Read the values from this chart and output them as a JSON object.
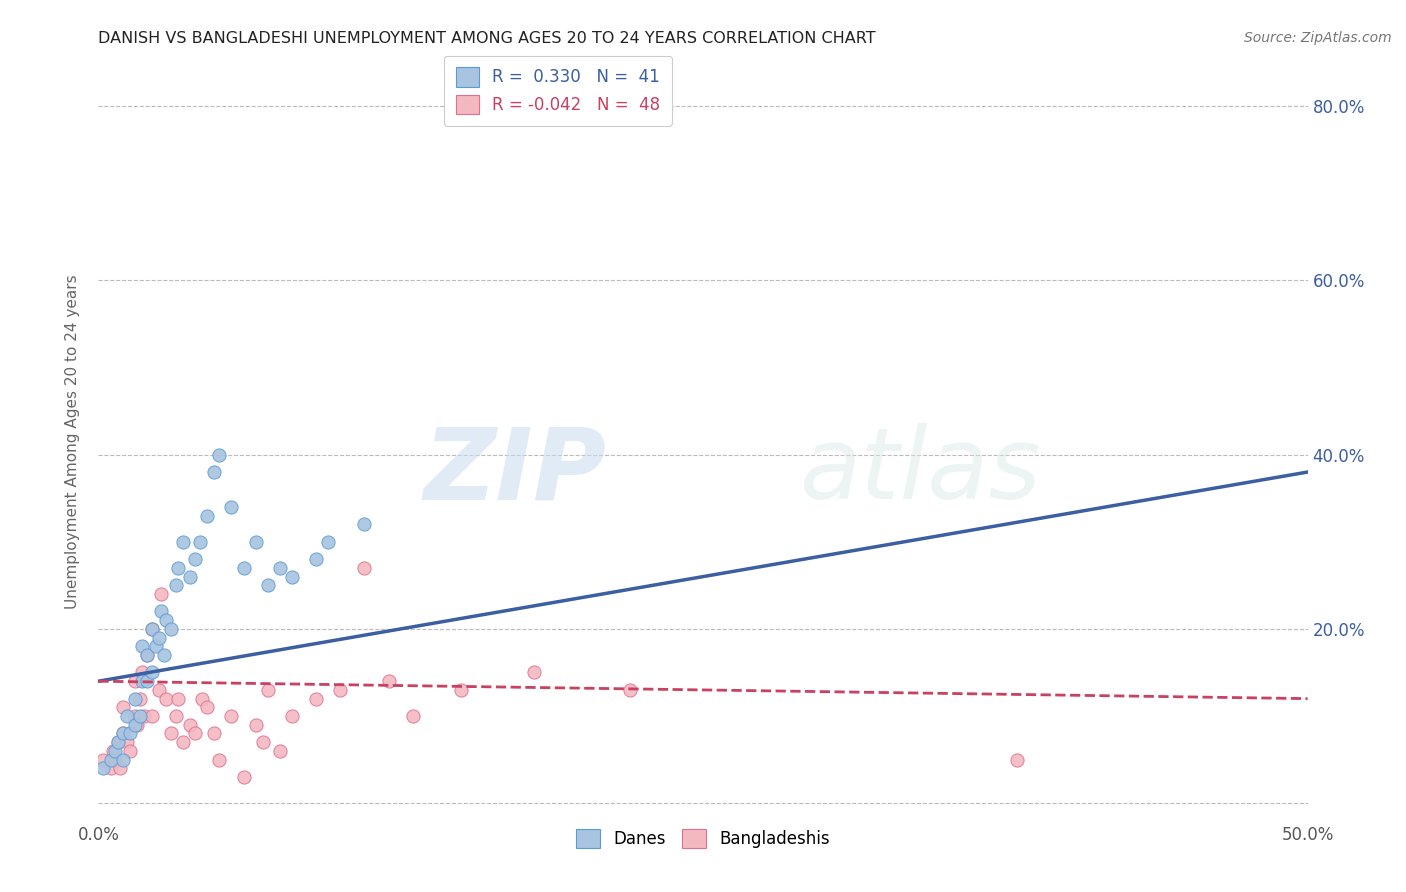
{
  "title": "DANISH VS BANGLADESHI UNEMPLOYMENT AMONG AGES 20 TO 24 YEARS CORRELATION CHART",
  "source": "Source: ZipAtlas.com",
  "ylabel": "Unemployment Among Ages 20 to 24 years",
  "xlim": [
    0.0,
    0.5
  ],
  "ylim": [
    -0.02,
    0.85
  ],
  "xticks": [
    0.0,
    0.5
  ],
  "xtick_labels": [
    "0.0%",
    "50.0%"
  ],
  "yticks_right": [
    0.0,
    0.2,
    0.4,
    0.6,
    0.8
  ],
  "ytick_labels_right": [
    "",
    "20.0%",
    "40.0%",
    "60.0%",
    "80.0%"
  ],
  "grid_yticks": [
    0.0,
    0.2,
    0.4,
    0.6,
    0.8
  ],
  "blue_fill_color": "#a8c4e0",
  "pink_fill_color": "#f4b8c1",
  "blue_edge_color": "#5b9bd5",
  "pink_edge_color": "#e07090",
  "blue_line_color": "#3b5fa0",
  "pink_line_color": "#c94060",
  "danes_x": [
    0.002,
    0.005,
    0.007,
    0.008,
    0.01,
    0.01,
    0.012,
    0.013,
    0.015,
    0.015,
    0.017,
    0.018,
    0.018,
    0.02,
    0.02,
    0.022,
    0.022,
    0.024,
    0.025,
    0.026,
    0.027,
    0.028,
    0.03,
    0.032,
    0.033,
    0.035,
    0.038,
    0.04,
    0.042,
    0.045,
    0.048,
    0.05,
    0.055,
    0.06,
    0.065,
    0.07,
    0.075,
    0.08,
    0.09,
    0.095,
    0.11
  ],
  "danes_y": [
    0.04,
    0.05,
    0.06,
    0.07,
    0.05,
    0.08,
    0.1,
    0.08,
    0.09,
    0.12,
    0.1,
    0.14,
    0.18,
    0.14,
    0.17,
    0.15,
    0.2,
    0.18,
    0.19,
    0.22,
    0.17,
    0.21,
    0.2,
    0.25,
    0.27,
    0.3,
    0.26,
    0.28,
    0.3,
    0.33,
    0.38,
    0.4,
    0.34,
    0.27,
    0.3,
    0.25,
    0.27,
    0.26,
    0.28,
    0.3,
    0.32
  ],
  "bangladeshis_x": [
    0.002,
    0.005,
    0.006,
    0.007,
    0.008,
    0.009,
    0.01,
    0.01,
    0.012,
    0.013,
    0.015,
    0.015,
    0.016,
    0.017,
    0.018,
    0.019,
    0.02,
    0.022,
    0.022,
    0.025,
    0.026,
    0.028,
    0.03,
    0.032,
    0.033,
    0.035,
    0.038,
    0.04,
    0.043,
    0.045,
    0.048,
    0.05,
    0.055,
    0.06,
    0.065,
    0.068,
    0.07,
    0.075,
    0.08,
    0.09,
    0.1,
    0.11,
    0.12,
    0.13,
    0.15,
    0.18,
    0.22,
    0.38
  ],
  "bangladeshis_y": [
    0.05,
    0.04,
    0.06,
    0.05,
    0.07,
    0.04,
    0.08,
    0.11,
    0.07,
    0.06,
    0.1,
    0.14,
    0.09,
    0.12,
    0.15,
    0.1,
    0.17,
    0.2,
    0.1,
    0.13,
    0.24,
    0.12,
    0.08,
    0.1,
    0.12,
    0.07,
    0.09,
    0.08,
    0.12,
    0.11,
    0.08,
    0.05,
    0.1,
    0.03,
    0.09,
    0.07,
    0.13,
    0.06,
    0.1,
    0.12,
    0.13,
    0.27,
    0.14,
    0.1,
    0.13,
    0.15,
    0.13,
    0.05
  ],
  "danes_line_x": [
    0.0,
    0.5
  ],
  "danes_line_y": [
    0.14,
    0.38
  ],
  "bangladeshis_line_x": [
    0.0,
    0.5
  ],
  "bangladeshis_line_y": [
    0.14,
    0.12
  ],
  "watermark_zip": "ZIP",
  "watermark_atlas": "atlas"
}
